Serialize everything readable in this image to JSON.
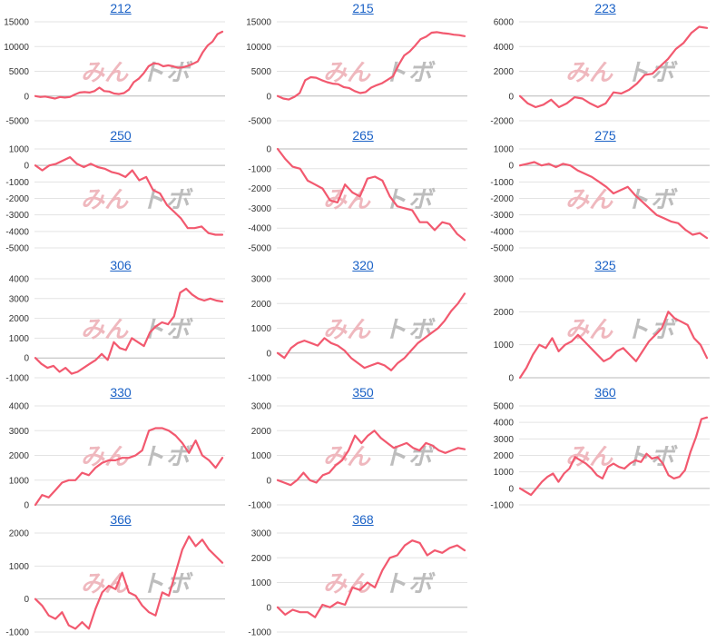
{
  "colors": {
    "line": "#f2596f",
    "grid": "#e3e3e3",
    "axis": "#b8b8b8",
    "title": "#1a61c6",
    "wm_pink": "#efb8be",
    "wm_gray": "#bdbdbd"
  },
  "watermark": {
    "part1": "みん",
    "part2": "ト",
    "part3": "ボ"
  },
  "chart_data": [
    {
      "type": "line",
      "title": "212",
      "yticks": [
        15000,
        10000,
        5000,
        0,
        -5000
      ],
      "ylim": [
        -5000,
        15000
      ],
      "series": [
        {
          "values": [
            0,
            -200,
            -100,
            -300,
            -500,
            -200,
            -300,
            -200,
            300,
            700,
            800,
            700,
            1000,
            1700,
            1000,
            900,
            500,
            400,
            600,
            1300,
            2800,
            3500,
            4600,
            6000,
            6600,
            6500,
            6000,
            6200,
            6000,
            5700,
            5800,
            6100,
            6500,
            7000,
            8800,
            10200,
            11000,
            12500,
            13000
          ]
        }
      ]
    },
    {
      "type": "line",
      "title": "215",
      "yticks": [
        15000,
        10000,
        5000,
        0,
        -5000
      ],
      "ylim": [
        -5000,
        15000
      ],
      "series": [
        {
          "values": [
            0,
            -500,
            -700,
            -200,
            600,
            3200,
            3800,
            3700,
            3200,
            2800,
            2500,
            2400,
            1800,
            1600,
            1000,
            600,
            800,
            1700,
            2200,
            2600,
            3300,
            4000,
            6300,
            8200,
            9000,
            10200,
            11500,
            12000,
            12800,
            12900,
            12700,
            12600,
            12400,
            12300,
            12100
          ]
        }
      ]
    },
    {
      "type": "line",
      "title": "223",
      "yticks": [
        6000,
        4000,
        2000,
        0,
        -2000
      ],
      "ylim": [
        -2000,
        6000
      ],
      "series": [
        {
          "values": [
            0,
            -600,
            -900,
            -700,
            -300,
            -900,
            -600,
            -100,
            -200,
            -600,
            -900,
            -600,
            300,
            200,
            500,
            1000,
            1700,
            1800,
            2400,
            3000,
            3800,
            4300,
            5100,
            5600,
            5500
          ]
        }
      ]
    },
    {
      "type": "line",
      "title": "250",
      "yticks": [
        1000,
        0,
        -1000,
        -2000,
        -3000,
        -4000,
        -5000
      ],
      "ylim": [
        -5000,
        1000
      ],
      "series": [
        {
          "values": [
            0,
            -300,
            0,
            100,
            300,
            500,
            100,
            -100,
            100,
            -100,
            -200,
            -400,
            -500,
            -700,
            -300,
            -900,
            -700,
            -1500,
            -1700,
            -2400,
            -2800,
            -3200,
            -3800,
            -3800,
            -3700,
            -4100,
            -4200,
            -4200
          ]
        }
      ]
    },
    {
      "type": "line",
      "title": "265",
      "yticks": [
        0,
        -1000,
        -2000,
        -3000,
        -4000,
        -5000
      ],
      "ylim": [
        -5000,
        0
      ],
      "series": [
        {
          "values": [
            0,
            -500,
            -900,
            -1000,
            -1600,
            -1800,
            -2000,
            -2600,
            -2700,
            -1800,
            -2200,
            -2400,
            -1500,
            -1400,
            -1600,
            -2400,
            -2900,
            -3000,
            -3100,
            -3700,
            -3700,
            -4100,
            -3700,
            -3800,
            -4300,
            -4600
          ]
        }
      ]
    },
    {
      "type": "line",
      "title": "275",
      "yticks": [
        1000,
        0,
        -1000,
        -2000,
        -3000,
        -4000,
        -5000
      ],
      "ylim": [
        -5000,
        1000
      ],
      "series": [
        {
          "values": [
            0,
            100,
            200,
            0,
            100,
            -100,
            100,
            0,
            -300,
            -500,
            -700,
            -1000,
            -1300,
            -1700,
            -1500,
            -1300,
            -1800,
            -2200,
            -2600,
            -3000,
            -3200,
            -3400,
            -3500,
            -3900,
            -4200,
            -4100,
            -4400
          ]
        }
      ]
    },
    {
      "type": "line",
      "title": "306",
      "yticks": [
        4000,
        3000,
        2000,
        1000,
        0,
        -1000
      ],
      "ylim": [
        -1000,
        4000
      ],
      "series": [
        {
          "values": [
            0,
            -300,
            -500,
            -400,
            -700,
            -500,
            -800,
            -700,
            -500,
            -300,
            -100,
            200,
            -100,
            800,
            500,
            400,
            1000,
            800,
            600,
            1300,
            1600,
            1800,
            1700,
            2100,
            3300,
            3500,
            3200,
            3000,
            2900,
            3000,
            2900,
            2850
          ]
        }
      ]
    },
    {
      "type": "line",
      "title": "320",
      "yticks": [
        3000,
        2000,
        1000,
        0,
        -1000
      ],
      "ylim": [
        -1000,
        3000
      ],
      "series": [
        {
          "values": [
            0,
            -200,
            200,
            400,
            500,
            400,
            300,
            600,
            400,
            300,
            100,
            -200,
            -400,
            -600,
            -500,
            -400,
            -500,
            -700,
            -400,
            -200,
            100,
            400,
            600,
            800,
            1000,
            1300,
            1700,
            2000,
            2400
          ]
        }
      ]
    },
    {
      "type": "line",
      "title": "325",
      "yticks": [
        3000,
        2000,
        1000,
        0
      ],
      "ylim": [
        0,
        3000
      ],
      "series": [
        {
          "values": [
            0,
            300,
            700,
            1000,
            900,
            1200,
            800,
            1000,
            1100,
            1300,
            1100,
            900,
            700,
            500,
            600,
            800,
            900,
            700,
            500,
            800,
            1100,
            1300,
            1500,
            2000,
            1800,
            1700,
            1600,
            1200,
            1000,
            600
          ]
        }
      ]
    },
    {
      "type": "line",
      "title": "330",
      "yticks": [
        4000,
        3000,
        2000,
        1000,
        0
      ],
      "ylim": [
        0,
        4000
      ],
      "series": [
        {
          "values": [
            0,
            400,
            300,
            600,
            900,
            1000,
            1000,
            1300,
            1200,
            1500,
            1700,
            1800,
            1800,
            1900,
            1900,
            2000,
            2200,
            3000,
            3100,
            3100,
            3000,
            2800,
            2500,
            2100,
            2600,
            2000,
            1800,
            1500,
            1900
          ]
        }
      ]
    },
    {
      "type": "line",
      "title": "350",
      "yticks": [
        3000,
        2000,
        1000,
        0,
        -1000
      ],
      "ylim": [
        -1000,
        3000
      ],
      "series": [
        {
          "values": [
            0,
            -100,
            -200,
            0,
            300,
            0,
            -100,
            200,
            300,
            600,
            800,
            1200,
            1800,
            1500,
            1800,
            2000,
            1700,
            1500,
            1300,
            1400,
            1500,
            1300,
            1200,
            1500,
            1400,
            1200,
            1100,
            1200,
            1300,
            1250
          ]
        }
      ]
    },
    {
      "type": "line",
      "title": "360",
      "yticks": [
        5000,
        4000,
        3000,
        2000,
        1000,
        0,
        -1000
      ],
      "ylim": [
        -1000,
        5000
      ],
      "series": [
        {
          "values": [
            0,
            -200,
            -400,
            0,
            400,
            700,
            900,
            400,
            900,
            1200,
            1900,
            1700,
            1500,
            1200,
            800,
            600,
            1300,
            1500,
            1300,
            1200,
            1500,
            1700,
            1600,
            2100,
            1800,
            1900,
            1500,
            800,
            600,
            700,
            1100,
            2200,
            3100,
            4200,
            4300
          ]
        }
      ]
    },
    {
      "type": "line",
      "title": "366",
      "yticks": [
        2000,
        1000,
        0,
        -1000
      ],
      "ylim": [
        -1000,
        2000
      ],
      "series": [
        {
          "values": [
            0,
            -200,
            -500,
            -600,
            -400,
            -800,
            -900,
            -700,
            -900,
            -300,
            200,
            400,
            300,
            800,
            200,
            100,
            -200,
            -400,
            -500,
            200,
            100,
            800,
            1500,
            1900,
            1600,
            1800,
            1500,
            1300,
            1100
          ]
        }
      ]
    },
    {
      "type": "line",
      "title": "368",
      "yticks": [
        3000,
        2000,
        1000,
        0,
        -1000
      ],
      "ylim": [
        -1000,
        3000
      ],
      "series": [
        {
          "values": [
            0,
            -300,
            -100,
            -200,
            -200,
            -400,
            100,
            0,
            200,
            100,
            800,
            700,
            1000,
            800,
            1500,
            2000,
            2100,
            2500,
            2700,
            2600,
            2100,
            2300,
            2200,
            2400,
            2500,
            2300
          ]
        }
      ]
    }
  ]
}
